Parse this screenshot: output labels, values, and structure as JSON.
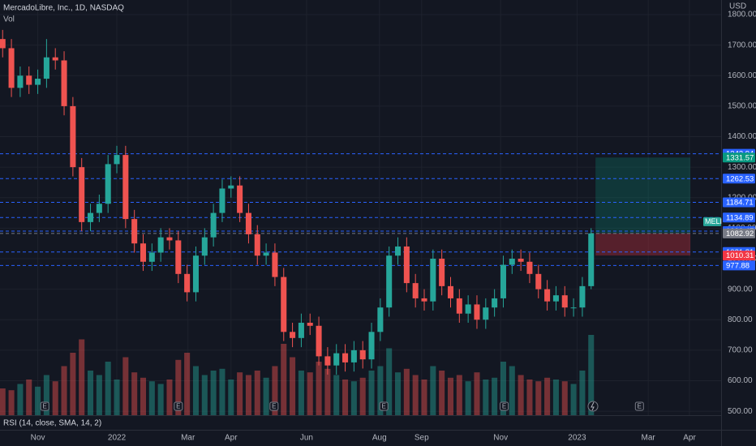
{
  "chart_data": {
    "type": "candlestick",
    "title": "MercadoLibre, Inc., 1D, NASDAQ",
    "volume_label": "Vol",
    "currency": "USD",
    "indicator": "RSI (14, close, SMA, 14, 2)",
    "symbol_label": "MELI",
    "up_color": "#26a69a",
    "down_color": "#ef5350",
    "grid": true,
    "ylim": [
      487,
      1848
    ],
    "yticks": [
      {
        "value": 500,
        "label": "500.00"
      },
      {
        "value": 600,
        "label": "600.00"
      },
      {
        "value": 700,
        "label": "700.00"
      },
      {
        "value": 800,
        "label": "800.00"
      },
      {
        "value": 900,
        "label": "900.00"
      },
      {
        "value": 1000,
        "label": "1000.00"
      },
      {
        "value": 1100,
        "label": "1100.00"
      },
      {
        "value": 1200,
        "label": "1200.00"
      },
      {
        "value": 1300,
        "label": "1300.00"
      },
      {
        "value": 1400,
        "label": "1400.00"
      },
      {
        "value": 1500,
        "label": "1500.00"
      },
      {
        "value": 1600,
        "label": "1600.00"
      },
      {
        "value": 1700,
        "label": "1700.00"
      },
      {
        "value": 1800,
        "label": "1800.00"
      }
    ],
    "xlim": [
      -0.3,
      81.8
    ],
    "xticks": [
      {
        "value": 4.0,
        "label": "Nov"
      },
      {
        "value": 13.0,
        "label": "2022"
      },
      {
        "value": 21.1,
        "label": "Mar"
      },
      {
        "value": 26.0,
        "label": "Apr"
      },
      {
        "value": 34.6,
        "label": "Jun"
      },
      {
        "value": 42.9,
        "label": "Aug"
      },
      {
        "value": 47.7,
        "label": "Sep"
      },
      {
        "value": 56.7,
        "label": "Nov"
      },
      {
        "value": 65.4,
        "label": "2023"
      },
      {
        "value": 73.5,
        "label": "Mar"
      },
      {
        "value": 78.2,
        "label": "Apr"
      }
    ],
    "x": [
      0,
      1,
      2,
      3,
      4,
      5,
      6,
      7,
      8,
      9,
      10,
      11,
      12,
      13,
      14,
      15,
      16,
      17,
      18,
      19,
      20,
      21,
      22,
      23,
      24,
      25,
      26,
      27,
      28,
      29,
      30,
      31,
      32,
      33,
      34,
      35,
      36,
      37,
      38,
      39,
      40,
      41,
      42,
      43,
      44,
      45,
      46,
      47,
      48,
      49,
      50,
      51,
      52,
      53,
      54,
      55,
      56,
      57,
      58,
      59,
      60,
      61,
      62,
      63,
      64,
      65,
      66,
      67
    ],
    "open": [
      1720,
      1690,
      1560,
      1600,
      1570,
      1590,
      1660,
      1650,
      1500,
      1300,
      1120,
      1150,
      1180,
      1310,
      1340,
      1130,
      1050,
      990,
      1020,
      1070,
      1060,
      950,
      890,
      1010,
      1070,
      1150,
      1230,
      1240,
      1150,
      1080,
      1010,
      1020,
      940,
      760,
      740,
      790,
      780,
      680,
      650,
      690,
      660,
      700,
      670,
      760,
      840,
      1010,
      1040,
      920,
      870,
      860,
      1000,
      910,
      870,
      820,
      850,
      800,
      840,
      870,
      980,
      1000,
      990,
      950,
      900,
      860,
      880,
      840,
      840,
      910
    ],
    "high": [
      1750,
      1720,
      1630,
      1630,
      1620,
      1720,
      1690,
      1680,
      1530,
      1330,
      1180,
      1210,
      1340,
      1370,
      1370,
      1160,
      1080,
      1050,
      1100,
      1100,
      1090,
      980,
      1040,
      1100,
      1180,
      1260,
      1270,
      1270,
      1180,
      1110,
      1050,
      1050,
      970,
      790,
      820,
      820,
      810,
      710,
      720,
      720,
      730,
      730,
      790,
      870,
      1040,
      1070,
      1070,
      950,
      900,
      1030,
      1030,
      940,
      900,
      880,
      880,
      870,
      900,
      1010,
      1030,
      1030,
      1020,
      980,
      930,
      910,
      910,
      870,
      940,
      1100
    ],
    "low": [
      1660,
      1530,
      1530,
      1540,
      1540,
      1560,
      1620,
      1470,
      1270,
      1090,
      1090,
      1120,
      1150,
      1280,
      1100,
      1020,
      960,
      960,
      990,
      1030,
      920,
      860,
      860,
      980,
      1040,
      1120,
      1200,
      1120,
      1050,
      980,
      980,
      910,
      730,
      710,
      710,
      750,
      650,
      620,
      620,
      630,
      630,
      640,
      640,
      730,
      810,
      980,
      890,
      840,
      830,
      830,
      880,
      840,
      790,
      790,
      770,
      770,
      810,
      840,
      950,
      960,
      920,
      870,
      830,
      830,
      810,
      810,
      810,
      900
    ],
    "close": [
      1690,
      1560,
      1600,
      1570,
      1590,
      1660,
      1650,
      1500,
      1300,
      1120,
      1150,
      1180,
      1310,
      1340,
      1130,
      1050,
      990,
      1020,
      1070,
      1060,
      950,
      890,
      1010,
      1070,
      1150,
      1230,
      1240,
      1150,
      1080,
      1010,
      1020,
      940,
      760,
      740,
      790,
      780,
      680,
      650,
      690,
      660,
      700,
      670,
      760,
      840,
      1010,
      1040,
      920,
      870,
      860,
      1000,
      910,
      870,
      820,
      850,
      800,
      840,
      870,
      980,
      1000,
      990,
      950,
      900,
      860,
      880,
      840,
      840,
      910,
      1082.92
    ],
    "volume_lim": [
      0,
      100
    ],
    "volume": [
      30,
      28,
      35,
      40,
      32,
      45,
      38,
      55,
      70,
      85,
      50,
      45,
      60,
      40,
      65,
      48,
      42,
      38,
      35,
      40,
      62,
      70,
      55,
      45,
      50,
      52,
      40,
      48,
      45,
      50,
      42,
      55,
      80,
      65,
      50,
      48,
      60,
      52,
      45,
      40,
      38,
      42,
      50,
      55,
      75,
      48,
      52,
      45,
      40,
      55,
      50,
      42,
      45,
      38,
      48,
      40,
      42,
      60,
      55,
      45,
      40,
      38,
      42,
      40,
      38,
      35,
      50,
      90
    ],
    "earnings": [
      {
        "x": 4.8,
        "label": "E"
      },
      {
        "x": 20.0,
        "label": "E"
      },
      {
        "x": 30.9,
        "label": "E"
      },
      {
        "x": 43.4,
        "label": "E"
      },
      {
        "x": 57.1,
        "label": "E"
      },
      {
        "x": 72.5,
        "label": "E"
      }
    ],
    "position": {
      "x_start": 67.5,
      "x_end": 78.3,
      "entry": 1082.92,
      "target": 1331.57,
      "stop": 1010.31
    },
    "price_lines": [
      {
        "value": 1343.94,
        "color": "#2962ff",
        "line": true
      },
      {
        "value": 1331.57,
        "color": "#089981",
        "line": false
      },
      {
        "value": 1262.53,
        "color": "#2962ff",
        "line": true
      },
      {
        "value": 1184.71,
        "color": "#2962ff",
        "line": true
      },
      {
        "value": 1134.89,
        "color": "#2962ff",
        "line": true
      },
      {
        "value": 1090.47,
        "color": "#2962ff",
        "line": true
      },
      {
        "value": 1082.92,
        "color": "#787b86",
        "line": true
      },
      {
        "value": 1021.81,
        "color": "#2962ff",
        "line": true
      },
      {
        "value": 1010.31,
        "color": "#f23645",
        "line": false
      },
      {
        "value": 977.88,
        "color": "#2962ff",
        "line": true
      }
    ]
  }
}
